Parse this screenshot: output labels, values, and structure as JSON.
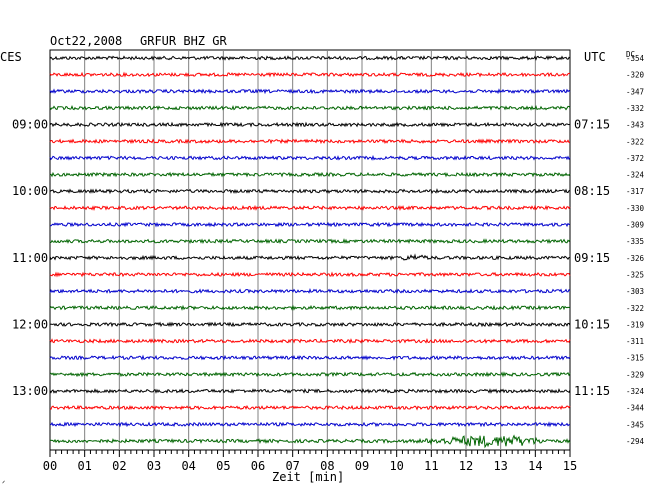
{
  "header": {
    "date": "Oct22,2008",
    "station": "GRFUR BHZ GR"
  },
  "labels": {
    "left_timezone": "CES",
    "right_timezone": "UTC",
    "dc_label": "DC",
    "x_axis_label": "Zeit [min]",
    "corner_mark": "ᐟ"
  },
  "colors": {
    "trace_cycle": [
      "#000000",
      "#ff0000",
      "#0000cc",
      "#006400"
    ],
    "grid": "#808080",
    "frame": "#000000"
  },
  "chart_data": {
    "type": "line",
    "title": "Oct22,2008    GRFUR BHZ GR",
    "xlabel": "Zeit [min]",
    "x_ticks": [
      "00",
      "01",
      "02",
      "03",
      "04",
      "05",
      "06",
      "07",
      "08",
      "09",
      "10",
      "11",
      "12",
      "13",
      "14",
      "15"
    ],
    "xlim": [
      0,
      15
    ],
    "left_hour_labels": [
      "09:00",
      "10:00",
      "11:00",
      "12:00",
      "13:00"
    ],
    "right_hour_labels": [
      "07:15",
      "08:15",
      "09:15",
      "10:15",
      "11:15"
    ],
    "hour_label_rows": [
      4,
      8,
      12,
      16,
      20
    ],
    "dc_offsets": [
      -354,
      -320,
      -347,
      -332,
      -343,
      -322,
      -372,
      -324,
      -317,
      -330,
      -309,
      -335,
      -326,
      -325,
      -303,
      -322,
      -319,
      -311,
      -315,
      -329,
      -324,
      -344,
      -345,
      -294
    ],
    "traces_per_hour": 4,
    "trace_count": 24,
    "events": [
      {
        "row": 23,
        "minute_start": 10.5,
        "minute_end": 14.5,
        "description": "larger amplitude wavetrain"
      },
      {
        "row": 12,
        "minute_start": 10.0,
        "minute_end": 11.0,
        "description": "small burst"
      }
    ]
  }
}
